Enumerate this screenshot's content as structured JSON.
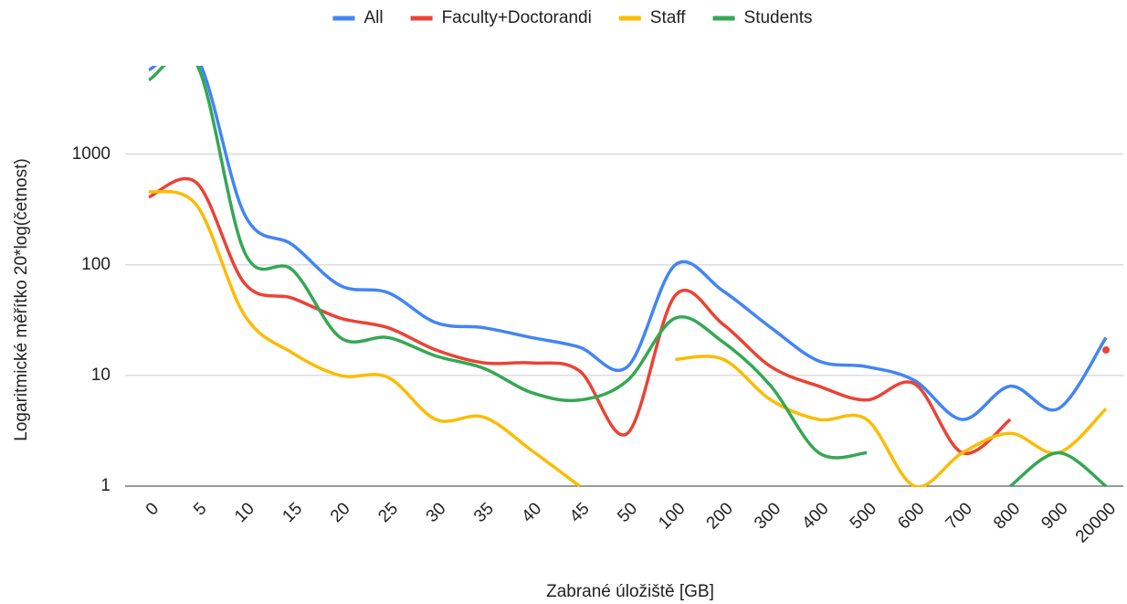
{
  "chart_data": {
    "type": "line",
    "x_label": "Zabrané úložiště [GB]",
    "y_label": "Logaritmické měřítko 20*log(četnost)",
    "log_scale": true,
    "grid": true,
    "legend": "top",
    "categories": [
      "0",
      "5",
      "10",
      "15",
      "20",
      "25",
      "30",
      "35",
      "40",
      "45",
      "50",
      "100",
      "200",
      "300",
      "400",
      "500",
      "600",
      "700",
      "800",
      "900",
      "20000"
    ],
    "ylim": [
      1,
      6300
    ],
    "yticks": [
      1,
      10,
      100,
      1000
    ],
    "series": [
      {
        "name": "All",
        "color": "#4285f4",
        "values": [
          5800,
          7500,
          285,
          152,
          65,
          56,
          30,
          27,
          22,
          18,
          12,
          100,
          58,
          27,
          13.5,
          12,
          9,
          4,
          8,
          5,
          22
        ]
      },
      {
        "name": "Faculty+Doctorandi",
        "color": "#ea4335",
        "values": [
          410,
          550,
          68,
          50,
          33,
          27,
          17,
          13,
          13,
          11,
          3,
          53,
          29,
          12,
          8,
          6,
          8.4,
          2,
          4,
          null,
          17
        ]
      },
      {
        "name": "Staff",
        "color": "#fbbc04",
        "values": [
          460,
          345,
          35,
          16,
          10,
          9.6,
          4,
          4.2,
          2.1,
          1,
          null,
          14,
          14,
          6,
          4,
          4,
          1,
          2,
          3,
          2,
          5
        ]
      },
      {
        "name": "Students",
        "color": "#34a853",
        "values": [
          4700,
          6500,
          130,
          90,
          22,
          22,
          15,
          11.6,
          7,
          6,
          9,
          33,
          20,
          8,
          2,
          2,
          null,
          null,
          1,
          2,
          1
        ]
      }
    ]
  }
}
